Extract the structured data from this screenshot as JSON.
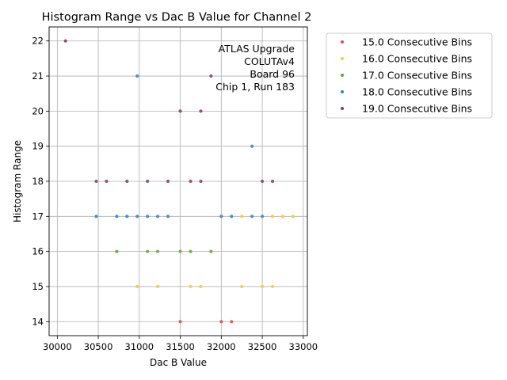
{
  "chart_data": {
    "type": "scatter",
    "title": "Histogram Range vs Dac B Value for Channel 2",
    "xlabel": "Dac B Value",
    "ylabel": "Histogram Range",
    "xlim": [
      29900,
      33050
    ],
    "ylim": [
      13.6,
      22.4
    ],
    "xticks": [
      30000,
      30500,
      31000,
      31500,
      32000,
      32500,
      33000
    ],
    "yticks": [
      14,
      15,
      16,
      17,
      18,
      19,
      20,
      21,
      22
    ],
    "grid": true,
    "legend_position": "outside-top-right",
    "annotation": [
      "ATLAS Upgrade",
      "COLUTAv4",
      "Board 96",
      "Chip 1, Run 183"
    ],
    "series": [
      {
        "name": "15.0 Consecutive Bins",
        "color": "#e8474f",
        "points": [
          [
            31500,
            14
          ],
          [
            32000,
            14
          ],
          [
            32125,
            14
          ]
        ]
      },
      {
        "name": "16.0 Consecutive Bins",
        "color": "#f9c840",
        "points": [
          [
            30975,
            15
          ],
          [
            31225,
            15
          ],
          [
            31625,
            15
          ],
          [
            31750,
            15
          ],
          [
            32250,
            15
          ],
          [
            32500,
            15
          ],
          [
            32625,
            15
          ],
          [
            32250,
            17
          ],
          [
            32625,
            17
          ],
          [
            32750,
            17
          ],
          [
            32875,
            17
          ]
        ]
      },
      {
        "name": "17.0 Consecutive Bins",
        "color": "#5fa732",
        "points": [
          [
            30725,
            16
          ],
          [
            31100,
            16
          ],
          [
            31225,
            16
          ],
          [
            31500,
            16
          ],
          [
            31625,
            16
          ],
          [
            31875,
            16
          ]
        ]
      },
      {
        "name": "18.0 Consecutive Bins",
        "color": "#3b82c0",
        "points": [
          [
            30475,
            17
          ],
          [
            30725,
            17
          ],
          [
            30850,
            17
          ],
          [
            30975,
            17
          ],
          [
            31100,
            17
          ],
          [
            31225,
            17
          ],
          [
            31350,
            17
          ],
          [
            32000,
            17
          ],
          [
            32125,
            17
          ],
          [
            32375,
            17
          ],
          [
            32500,
            17
          ],
          [
            32375,
            19
          ],
          [
            30975,
            21
          ]
        ]
      },
      {
        "name": "19.0 Consecutive Bins",
        "color": "#8a3a5e",
        "points": [
          [
            30100,
            22
          ],
          [
            30475,
            18
          ],
          [
            30600,
            18
          ],
          [
            30850,
            18
          ],
          [
            31100,
            18
          ],
          [
            31350,
            18
          ],
          [
            31625,
            18
          ],
          [
            31750,
            18
          ],
          [
            32500,
            18
          ],
          [
            32625,
            18
          ],
          [
            31500,
            20
          ],
          [
            31750,
            20
          ],
          [
            31875,
            21
          ]
        ]
      }
    ]
  }
}
